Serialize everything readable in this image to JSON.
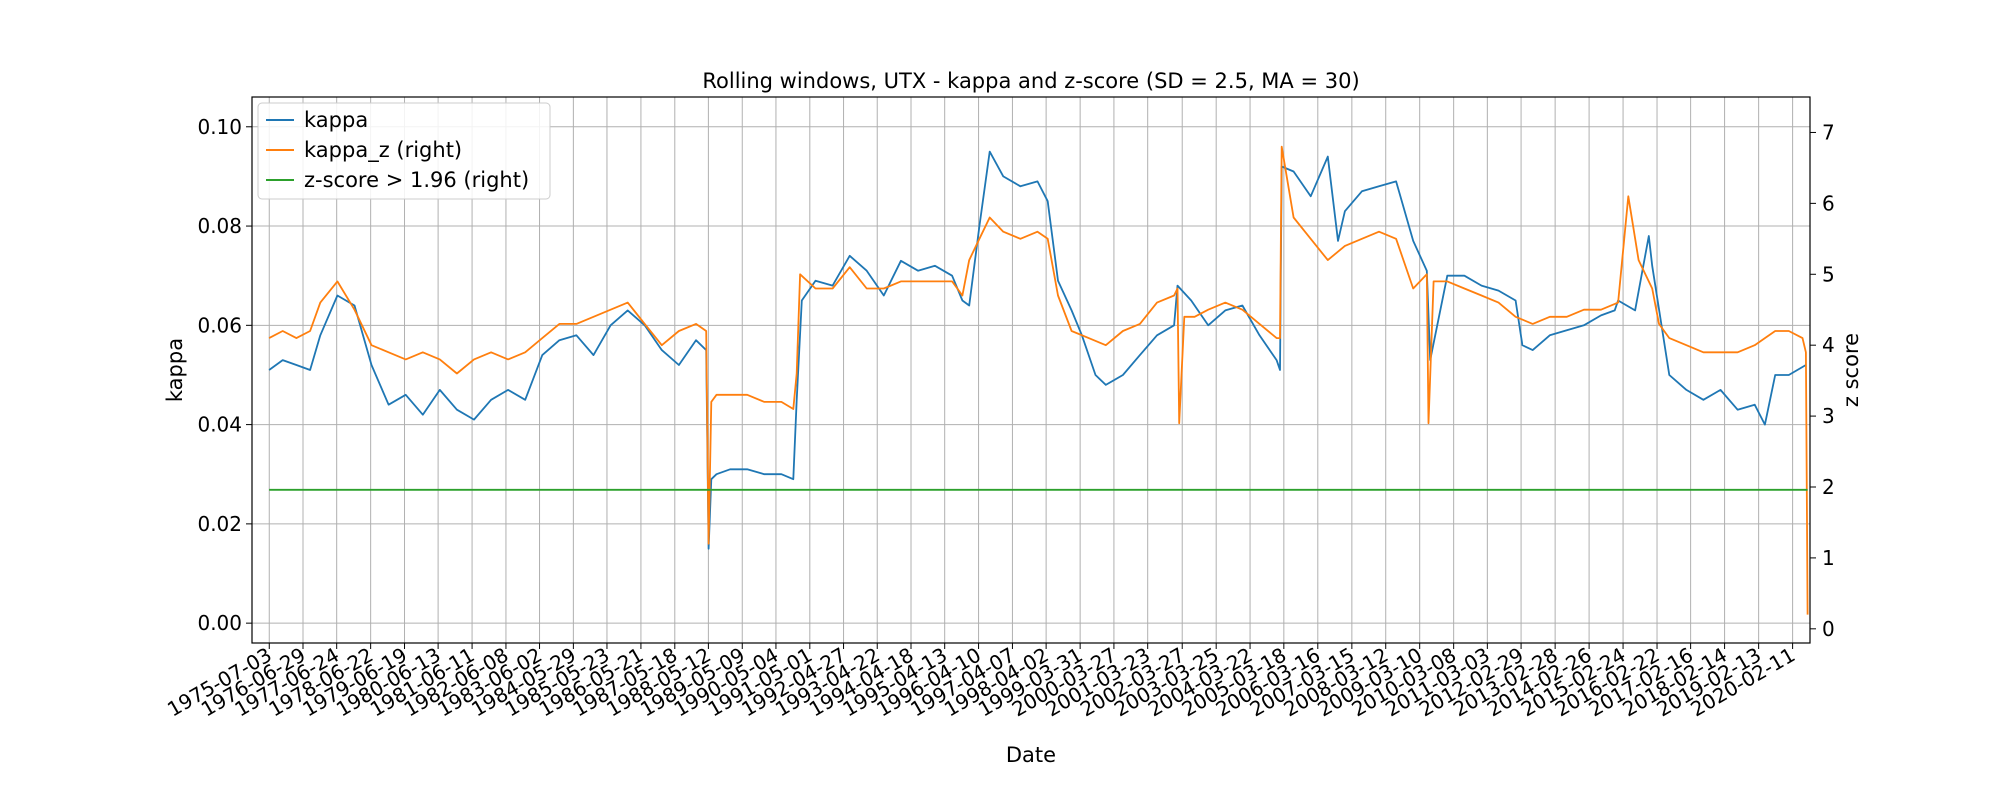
{
  "chart_data": {
    "type": "line",
    "title": "Rolling windows, UTX - kappa and z-score (SD = 2.5, MA = 30)",
    "xlabel": "Date",
    "ylabel": "kappa",
    "ylabel_right": "z score",
    "ylim": [
      -0.004,
      0.106
    ],
    "ylim_right": [
      -0.2,
      7.5
    ],
    "yticks": [
      "0.00",
      "0.02",
      "0.04",
      "0.06",
      "0.08",
      "0.10"
    ],
    "yticks_right": [
      "0",
      "1",
      "2",
      "3",
      "4",
      "5",
      "6",
      "7"
    ],
    "grid": true,
    "legend_position": "top-left",
    "x_ticks": [
      "1975-07-03",
      "1976-06-29",
      "1977-06-24",
      "1978-06-22",
      "1979-06-19",
      "1980-06-13",
      "1981-06-11",
      "1982-06-08",
      "1983-06-02",
      "1984-05-29",
      "1985-05-23",
      "1986-05-21",
      "1987-05-18",
      "1988-05-12",
      "1989-05-09",
      "1990-05-04",
      "1991-05-01",
      "1992-04-27",
      "1993-04-22",
      "1994-04-18",
      "1995-04-13",
      "1996-04-10",
      "1997-04-07",
      "1998-04-02",
      "1999-03-31",
      "2000-03-27",
      "2001-03-23",
      "2002-03-27",
      "2003-03-25",
      "2004-03-22",
      "2005-03-18",
      "2006-03-16",
      "2007-03-15",
      "2008-03-12",
      "2009-03-10",
      "2010-03-08",
      "2011-03-03",
      "2012-02-29",
      "2013-02-28",
      "2014-02-26",
      "2015-02-24",
      "2016-02-22",
      "2017-02-16",
      "2018-02-14",
      "2019-02-13",
      "2020-02-11"
    ],
    "series": [
      {
        "name": "kappa",
        "axis": "left",
        "color": "#1f77b4",
        "x": [
          1975.5,
          1975.9,
          1976.3,
          1976.7,
          1977.0,
          1977.5,
          1978.0,
          1978.5,
          1979.0,
          1979.5,
          1980.0,
          1980.5,
          1981.0,
          1981.5,
          1982.0,
          1982.5,
          1983.0,
          1983.5,
          1984.0,
          1984.5,
          1985.0,
          1985.5,
          1986.0,
          1986.5,
          1987.0,
          1987.5,
          1988.0,
          1988.3,
          1988.37,
          1988.45,
          1988.6,
          1989.0,
          1989.5,
          1990.0,
          1990.5,
          1990.85,
          1990.95,
          1991.1,
          1991.5,
          1992.0,
          1992.5,
          1993.0,
          1993.5,
          1994.0,
          1994.5,
          1995.0,
          1995.5,
          1995.8,
          1996.0,
          1996.3,
          1996.6,
          1997.0,
          1997.5,
          1998.0,
          1998.3,
          1998.6,
          1999.0,
          1999.3,
          1999.7,
          2000.0,
          2000.5,
          2001.0,
          2001.5,
          2002.0,
          2002.1,
          2002.5,
          2003.0,
          2003.5,
          2004.0,
          2004.5,
          2005.0,
          2005.1,
          2005.15,
          2005.5,
          2006.0,
          2006.5,
          2006.8,
          2007.0,
          2007.5,
          2008.0,
          2008.5,
          2009.0,
          2009.4,
          2009.5,
          2010.0,
          2010.5,
          2011.0,
          2011.5,
          2012.0,
          2012.2,
          2012.5,
          2013.0,
          2013.5,
          2014.0,
          2014.5,
          2014.9,
          2015.0,
          2015.5,
          2015.9,
          2016.0,
          2016.5,
          2017.0,
          2017.5,
          2018.0,
          2018.5,
          2019.0,
          2019.3,
          2019.6,
          2020.0,
          2020.5
        ],
        "y": [
          0.051,
          0.053,
          0.052,
          0.051,
          0.058,
          0.066,
          0.064,
          0.052,
          0.044,
          0.046,
          0.042,
          0.047,
          0.043,
          0.041,
          0.045,
          0.047,
          0.045,
          0.054,
          0.057,
          0.058,
          0.054,
          0.06,
          0.063,
          0.06,
          0.055,
          0.052,
          0.057,
          0.055,
          0.015,
          0.029,
          0.03,
          0.031,
          0.031,
          0.03,
          0.03,
          0.029,
          0.045,
          0.065,
          0.069,
          0.068,
          0.074,
          0.071,
          0.066,
          0.073,
          0.071,
          0.072,
          0.07,
          0.065,
          0.064,
          0.08,
          0.095,
          0.09,
          0.088,
          0.089,
          0.085,
          0.069,
          0.063,
          0.058,
          0.05,
          0.048,
          0.05,
          0.054,
          0.058,
          0.06,
          0.068,
          0.065,
          0.06,
          0.063,
          0.064,
          0.058,
          0.053,
          0.051,
          0.092,
          0.091,
          0.086,
          0.094,
          0.077,
          0.083,
          0.087,
          0.088,
          0.089,
          0.077,
          0.071,
          0.053,
          0.07,
          0.07,
          0.068,
          0.067,
          0.065,
          0.056,
          0.055,
          0.058,
          0.059,
          0.06,
          0.062,
          0.063,
          0.065,
          0.063,
          0.078,
          0.072,
          0.05,
          0.047,
          0.045,
          0.047,
          0.043,
          0.044,
          0.04,
          0.05,
          0.05,
          0.052
        ]
      },
      {
        "name": "kappa_z (right)",
        "axis": "right",
        "color": "#ff7f0e",
        "x": [
          1975.5,
          1975.9,
          1976.3,
          1976.7,
          1977.0,
          1977.5,
          1978.0,
          1978.5,
          1979.0,
          1979.5,
          1980.0,
          1980.5,
          1981.0,
          1981.5,
          1982.0,
          1982.5,
          1983.0,
          1983.5,
          1984.0,
          1984.5,
          1985.0,
          1985.5,
          1986.0,
          1986.5,
          1987.0,
          1987.5,
          1988.0,
          1988.3,
          1988.37,
          1988.45,
          1988.6,
          1989.0,
          1989.5,
          1990.0,
          1990.5,
          1990.85,
          1990.95,
          1991.05,
          1991.5,
          1992.0,
          1992.5,
          1993.0,
          1993.5,
          1994.0,
          1994.5,
          1995.0,
          1995.5,
          1995.8,
          1996.0,
          1996.3,
          1996.6,
          1997.0,
          1997.5,
          1998.0,
          1998.3,
          1998.6,
          1999.0,
          1999.5,
          2000.0,
          2000.5,
          2001.0,
          2001.5,
          2002.0,
          2002.1,
          2002.15,
          2002.3,
          2002.6,
          2003.0,
          2003.5,
          2004.0,
          2004.5,
          2005.0,
          2005.1,
          2005.15,
          2005.5,
          2006.0,
          2006.5,
          2007.0,
          2007.5,
          2008.0,
          2008.5,
          2009.0,
          2009.4,
          2009.45,
          2009.6,
          2010.0,
          2010.5,
          2011.0,
          2011.5,
          2012.0,
          2012.5,
          2013.0,
          2013.5,
          2014.0,
          2014.5,
          2015.0,
          2015.3,
          2015.6,
          2016.0,
          2016.2,
          2016.5,
          2017.0,
          2017.5,
          2018.0,
          2018.5,
          2019.0,
          2019.3,
          2019.6,
          2020.0,
          2020.4,
          2020.5,
          2020.55
        ],
        "y": [
          4.1,
          4.2,
          4.1,
          4.2,
          4.6,
          4.9,
          4.5,
          4.0,
          3.9,
          3.8,
          3.9,
          3.8,
          3.6,
          3.8,
          3.9,
          3.8,
          3.9,
          4.1,
          4.3,
          4.3,
          4.4,
          4.5,
          4.6,
          4.3,
          4.0,
          4.2,
          4.3,
          4.2,
          1.2,
          3.2,
          3.3,
          3.3,
          3.3,
          3.2,
          3.2,
          3.1,
          3.6,
          5.0,
          4.8,
          4.8,
          5.1,
          4.8,
          4.8,
          4.9,
          4.9,
          4.9,
          4.9,
          4.7,
          5.2,
          5.5,
          5.8,
          5.6,
          5.5,
          5.6,
          5.5,
          4.7,
          4.2,
          4.1,
          4.0,
          4.2,
          4.3,
          4.6,
          4.7,
          4.8,
          2.9,
          4.4,
          4.4,
          4.5,
          4.6,
          4.5,
          4.3,
          4.1,
          4.1,
          6.8,
          5.8,
          5.5,
          5.2,
          5.4,
          5.5,
          5.6,
          5.5,
          4.8,
          5.0,
          2.9,
          4.9,
          4.9,
          4.8,
          4.7,
          4.6,
          4.4,
          4.3,
          4.4,
          4.4,
          4.5,
          4.5,
          4.6,
          6.1,
          5.2,
          4.8,
          4.3,
          4.1,
          4.0,
          3.9,
          3.9,
          3.9,
          4.0,
          4.1,
          4.2,
          4.2,
          4.1,
          3.9,
          0.2
        ]
      },
      {
        "name": "z-score > 1.96 (right)",
        "axis": "right",
        "color": "#2ca02c",
        "x": [
          1975.5,
          2020.55
        ],
        "y": [
          1.96,
          1.96
        ]
      }
    ]
  }
}
